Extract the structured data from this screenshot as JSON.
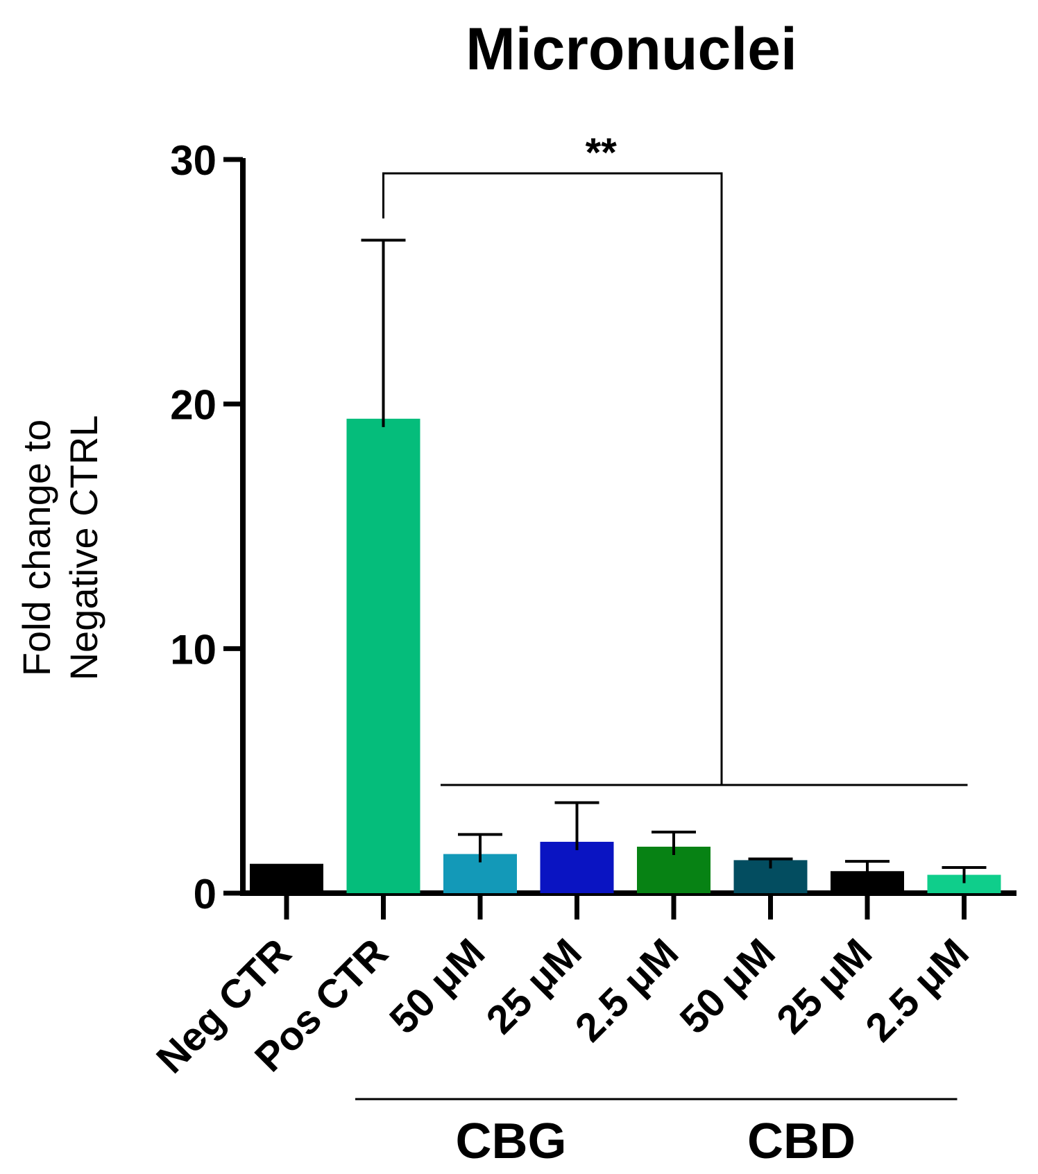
{
  "chart_data": {
    "type": "bar",
    "title": "Micronuclei",
    "ylabel_lines": [
      "Fold change to",
      "Negative CTRL"
    ],
    "xlabel": "",
    "ylim": [
      0,
      30
    ],
    "yticks": [
      0,
      10,
      20,
      30
    ],
    "categories": [
      "Neg CTR",
      "Pos CTR",
      "50 μM",
      "25 μM",
      "2.5 μM",
      "50 μM",
      "25 μM",
      "2.5 μM"
    ],
    "values": [
      1.2,
      19.4,
      1.6,
      2.1,
      1.9,
      1.35,
      0.9,
      0.75
    ],
    "errors": [
      0,
      7.3,
      0.8,
      1.6,
      0.6,
      0.05,
      0.4,
      0.3
    ],
    "colors": [
      "#000000",
      "#05bd7b",
      "#1399b8",
      "#0a14c2",
      "#078214",
      "#034d60",
      "#000000",
      "#0fce8b"
    ],
    "groups": [
      {
        "label": "CBG",
        "start": 2,
        "end": 4
      },
      {
        "label": "CBD",
        "start": 5,
        "end": 7
      }
    ],
    "significance": {
      "label": "**",
      "from": 1,
      "to_range": [
        2,
        7
      ]
    }
  }
}
